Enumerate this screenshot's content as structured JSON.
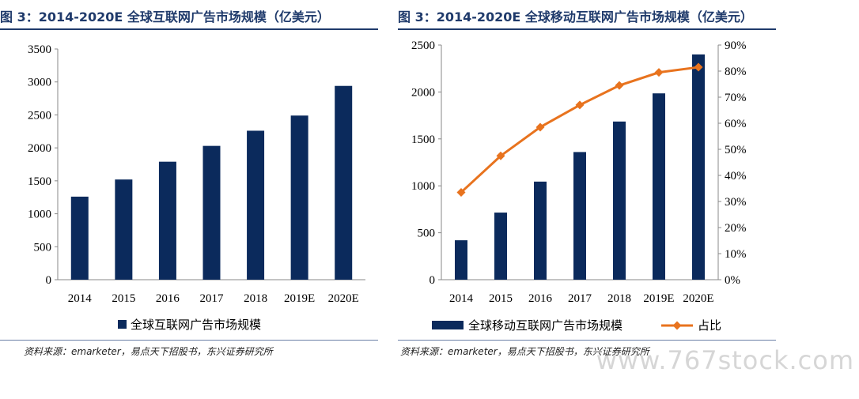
{
  "left": {
    "title": "图 3：2014-2020E 全球互联网广告市场规模（亿美元）",
    "source": "资料来源：emarketer，易点天下招股书，东兴证券研究所"
  },
  "right": {
    "title": "图 3：2014-2020E 全球移动互联网广告市场规模（亿美元）",
    "source": "资料来源：emarketer，易点天下招股书，东兴证券研究所"
  },
  "watermark": "www.767stock.com",
  "colors": {
    "bar": "#0b2a5c",
    "line": "#e8731e",
    "title": "#1f3a6b"
  },
  "chart_data": [
    {
      "type": "bar",
      "categories": [
        "2014",
        "2015",
        "2016",
        "2017",
        "2018",
        "2019E",
        "2020E"
      ],
      "series": [
        {
          "name": "全球互联网广告市场规模",
          "values": [
            1260,
            1520,
            1790,
            2030,
            2260,
            2490,
            2940
          ]
        }
      ],
      "ylim": [
        0,
        3500
      ],
      "yticks": [
        "0",
        "500",
        "1000",
        "1500",
        "2000",
        "2500",
        "3000",
        "3500"
      ],
      "legend": "bottom"
    },
    {
      "type": "bar+line",
      "categories": [
        "2014",
        "2015",
        "2016",
        "2017",
        "2018",
        "2019E",
        "2020E"
      ],
      "series": [
        {
          "name": "全球移动互联网广告市场规模",
          "type": "bar",
          "axis": "left",
          "values": [
            420,
            715,
            1045,
            1360,
            1685,
            1985,
            2400
          ]
        },
        {
          "name": "占比",
          "type": "line",
          "axis": "right",
          "values": [
            0.335,
            0.475,
            0.585,
            0.67,
            0.745,
            0.795,
            0.815
          ]
        }
      ],
      "ylim": [
        0,
        2500
      ],
      "yticks": [
        "0",
        "500",
        "1000",
        "1500",
        "2000",
        "2500"
      ],
      "y2lim": [
        0,
        0.9
      ],
      "y2ticks": [
        "0%",
        "10%",
        "20%",
        "30%",
        "40%",
        "50%",
        "60%",
        "70%",
        "80%",
        "90%"
      ],
      "legend": "bottom"
    }
  ]
}
